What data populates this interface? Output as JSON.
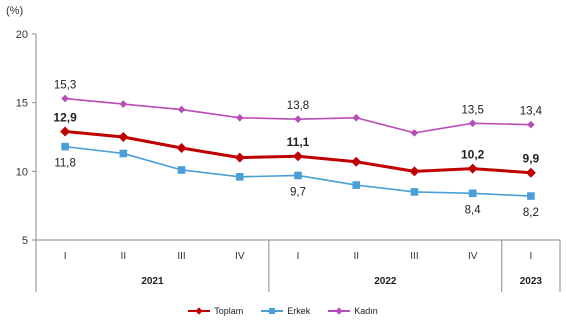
{
  "chart_data": {
    "type": "line",
    "unit_label": "(%)",
    "categories": [
      "I",
      "II",
      "III",
      "IV",
      "I",
      "II",
      "III",
      "IV",
      "I"
    ],
    "year_groups": [
      {
        "label": "2021",
        "start": 0,
        "end": 3
      },
      {
        "label": "2022",
        "start": 4,
        "end": 7
      },
      {
        "label": "2023",
        "start": 8,
        "end": 8
      }
    ],
    "ylim": [
      5,
      20
    ],
    "yticks": [
      5,
      10,
      15,
      20
    ],
    "series": [
      {
        "name": "Toplam",
        "color": "#c00000",
        "marker": "diamond",
        "values": [
          12.9,
          12.5,
          11.7,
          11.0,
          11.1,
          10.7,
          10.0,
          10.2,
          9.9
        ],
        "labels": {
          "0": "12,9",
          "4": "11,1",
          "7": "10,2",
          "8": "9,9"
        }
      },
      {
        "name": "Erkek",
        "color": "#4a9fd6",
        "marker": "square",
        "values": [
          11.8,
          11.3,
          10.1,
          9.6,
          9.7,
          9.0,
          8.5,
          8.4,
          8.2
        ],
        "labels": {
          "0": "11,8",
          "4": "9,7",
          "7": "8,4",
          "8": "8,2"
        }
      },
      {
        "name": "Kadın",
        "color": "#b84cb8",
        "marker": "diamond",
        "values": [
          15.3,
          14.9,
          14.5,
          13.9,
          13.8,
          13.9,
          12.8,
          13.5,
          13.4
        ],
        "labels": {
          "0": "15,3",
          "4": "13,8",
          "7": "13,5",
          "8": "13,4"
        }
      }
    ]
  }
}
